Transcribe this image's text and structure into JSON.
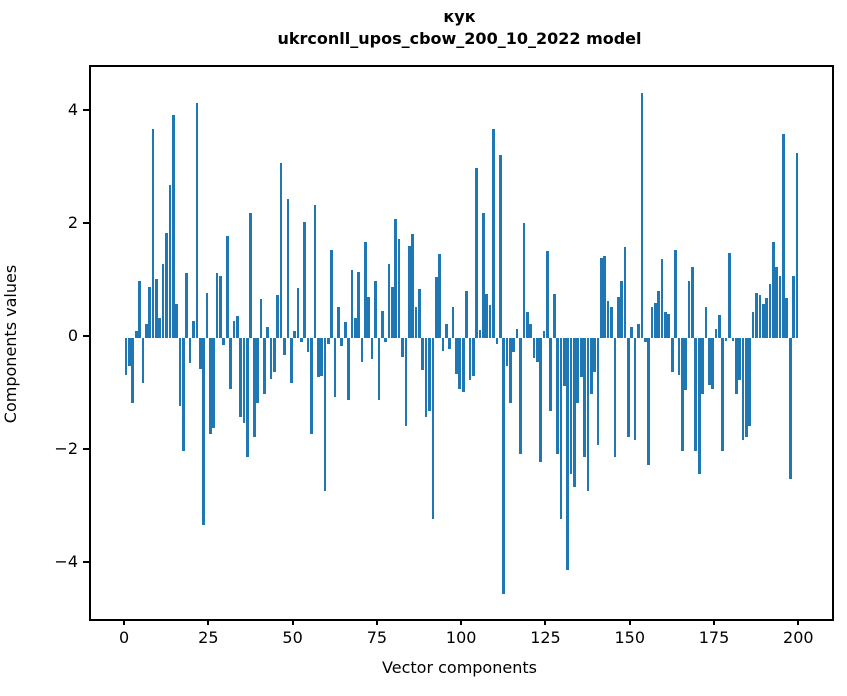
{
  "figure": {
    "title_line1": "кук",
    "title_line2": "ukrconll_upos_cbow_200_10_2022 model",
    "xlabel": "Vector components",
    "ylabel": "Components values"
  },
  "chart_data": {
    "type": "bar",
    "title": "кук",
    "subtitle": "ukrconll_upos_cbow_200_10_2022 model",
    "xlabel": "Vector components",
    "ylabel": "Components values",
    "bar_color": "#1f77b4",
    "grid": false,
    "legend": "none",
    "x_ticks": [
      0,
      25,
      50,
      75,
      100,
      125,
      150,
      175,
      200
    ],
    "y_ticks": [
      -4,
      -2,
      0,
      2,
      4
    ],
    "xlim": [
      -10.4,
      209.4
    ],
    "ylim": [
      -4.97,
      4.79
    ],
    "bar_width_units": 0.8,
    "x": "index 0..199",
    "values": [
      -0.65,
      -0.5,
      -1.15,
      0.12,
      1.0,
      -0.8,
      0.25,
      0.9,
      3.7,
      1.05,
      0.35,
      1.3,
      1.85,
      2.7,
      3.95,
      0.6,
      -1.2,
      -2.0,
      1.15,
      -0.45,
      0.3,
      4.15,
      -0.55,
      -3.3,
      0.8,
      -1.7,
      -1.6,
      1.15,
      1.1,
      -0.12,
      1.8,
      -0.9,
      0.3,
      0.38,
      -1.4,
      -1.5,
      -2.1,
      2.2,
      -1.75,
      -1.15,
      0.68,
      -1.0,
      0.2,
      -0.72,
      -0.6,
      0.75,
      3.1,
      -0.3,
      2.45,
      -0.8,
      0.12,
      0.88,
      -0.08,
      2.05,
      -0.25,
      -1.7,
      2.35,
      -0.7,
      -0.68,
      -2.7,
      -0.1,
      1.55,
      -1.05,
      0.55,
      -0.15,
      0.28,
      -1.1,
      1.2,
      0.35,
      1.17,
      -0.43,
      1.7,
      0.73,
      -0.37,
      1.0,
      -1.1,
      0.47,
      -0.08,
      1.3,
      0.9,
      2.1,
      1.75,
      -0.34,
      -1.55,
      1.62,
      1.84,
      0.55,
      0.87,
      -0.56,
      -1.4,
      -1.3,
      -3.2,
      1.08,
      1.48,
      -0.24,
      0.25,
      -0.2,
      0.55,
      -0.63,
      -0.9,
      -0.95,
      0.83,
      -0.75,
      -0.68,
      3.0,
      0.14,
      2.2,
      0.78,
      0.58,
      3.7,
      -0.1,
      3.24,
      -4.53,
      -0.5,
      -1.15,
      -0.25,
      0.15,
      -2.05,
      2.04,
      0.45,
      0.24,
      -0.35,
      -0.43,
      -2.2,
      0.12,
      1.53,
      -1.3,
      0.78,
      -2.05,
      -3.2,
      -0.85,
      -4.1,
      -2.4,
      -2.63,
      -1.15,
      -0.7,
      -2.1,
      -2.7,
      -1.0,
      -0.6,
      -1.9,
      1.42,
      1.45,
      0.65,
      0.55,
      -2.1,
      0.72,
      1.0,
      1.6,
      -1.75,
      0.2,
      -1.8,
      0.25,
      4.33,
      -0.07,
      -2.25,
      0.55,
      0.62,
      0.83,
      1.4,
      0.45,
      0.42,
      -0.6,
      1.55,
      -0.66,
      -2.0,
      -0.92,
      1.0,
      1.25,
      -2.0,
      -2.4,
      -1.0,
      0.55,
      -0.84,
      -0.9,
      0.15,
      0.4,
      -2.0,
      -0.05,
      1.5,
      -0.05,
      -1.0,
      -0.75,
      -1.8,
      -1.75,
      -1.55,
      0.45,
      0.8,
      0.75,
      0.6,
      0.7,
      0.95,
      1.7,
      1.25,
      1.1,
      3.6,
      0.7,
      -2.5,
      1.1,
      3.27
    ]
  }
}
